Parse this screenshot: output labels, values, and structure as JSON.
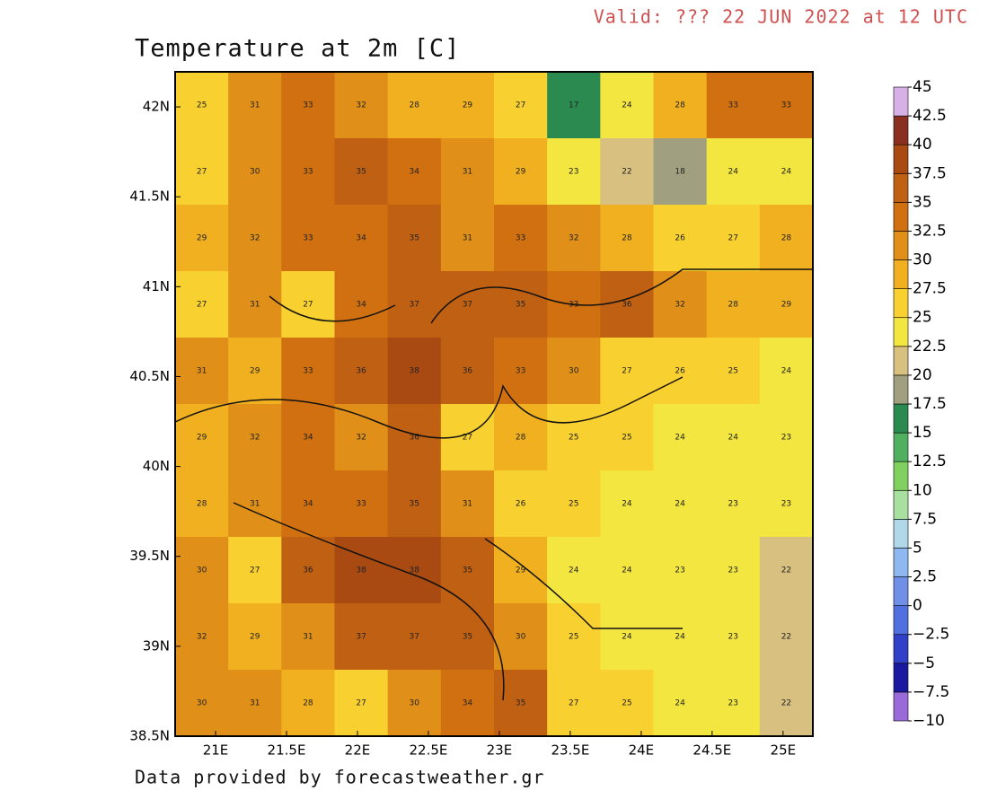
{
  "header": {
    "valid": "Valid: ??? 22 JUN 2022 at 12 UTC",
    "title": "Temperature at 2m [C]",
    "footer": "Data provided by forecastweather.gr"
  },
  "map": {
    "xlim": [
      20.715,
      25.21
    ],
    "ylim": [
      38.5,
      42.195
    ],
    "xticks": [
      {
        "value": 21,
        "label": "21E"
      },
      {
        "value": 21.5,
        "label": "21.5E"
      },
      {
        "value": 22,
        "label": "22E"
      },
      {
        "value": 22.5,
        "label": "22.5E"
      },
      {
        "value": 23,
        "label": "23E"
      },
      {
        "value": 23.5,
        "label": "23.5E"
      },
      {
        "value": 24,
        "label": "24E"
      },
      {
        "value": 24.5,
        "label": "24.5E"
      },
      {
        "value": 25,
        "label": "25E"
      }
    ],
    "yticks": [
      {
        "value": 38.5,
        "label": "38.5N"
      },
      {
        "value": 39,
        "label": "39N"
      },
      {
        "value": 39.5,
        "label": "39.5N"
      },
      {
        "value": 40,
        "label": "40N"
      },
      {
        "value": 40.5,
        "label": "40.5N"
      },
      {
        "value": 41,
        "label": "41N"
      },
      {
        "value": 41.5,
        "label": "41.5N"
      },
      {
        "value": 42,
        "label": "42N"
      }
    ],
    "values": [
      [
        25,
        31,
        33,
        32,
        28,
        29,
        27,
        17,
        24,
        28,
        33,
        33
      ],
      [
        27,
        30,
        33,
        35,
        34,
        31,
        29,
        23,
        22,
        18,
        24,
        24
      ],
      [
        29,
        32,
        33,
        34,
        35,
        31,
        33,
        32,
        28,
        26,
        27,
        28
      ],
      [
        27,
        31,
        27,
        34,
        37,
        37,
        35,
        33,
        36,
        32,
        28,
        29
      ],
      [
        31,
        29,
        33,
        36,
        38,
        36,
        33,
        30,
        27,
        26,
        25,
        24
      ],
      [
        29,
        32,
        34,
        32,
        36,
        27,
        28,
        25,
        25,
        24,
        24,
        23
      ],
      [
        28,
        31,
        34,
        33,
        35,
        31,
        26,
        25,
        24,
        24,
        23,
        23
      ],
      [
        30,
        27,
        36,
        38,
        38,
        35,
        29,
        24,
        24,
        23,
        23,
        22
      ],
      [
        32,
        29,
        31,
        37,
        37,
        35,
        30,
        25,
        24,
        24,
        23,
        22
      ],
      [
        30,
        31,
        28,
        27,
        30,
        34,
        35,
        27,
        25,
        24,
        23,
        22
      ]
    ]
  },
  "colorbar": {
    "ticks": [
      {
        "value": -10,
        "label": "−10"
      },
      {
        "value": -7.5,
        "label": "−7.5"
      },
      {
        "value": -5,
        "label": "−5"
      },
      {
        "value": -2.5,
        "label": "−2.5"
      },
      0,
      2.5,
      5,
      7.5,
      10,
      12.5,
      15,
      17.5,
      20,
      22.5,
      25,
      27.5,
      30,
      32.5,
      35,
      37.5,
      40,
      42.5,
      45
    ],
    "colors": [
      "#9a6ad8",
      "#1a1aa0",
      "#3040c8",
      "#5070e0",
      "#7090e8",
      "#90b8f0",
      "#b0d8e8",
      "#a8e0a0",
      "#80d060",
      "#50b060",
      "#2a8a50",
      "#a0a080",
      "#d8c080",
      "#f4e640",
      "#f8d030",
      "#f0b020",
      "#e09018",
      "#d07010",
      "#c06012",
      "#a84a12",
      "#8a3020",
      "#d8b0e8"
    ]
  }
}
